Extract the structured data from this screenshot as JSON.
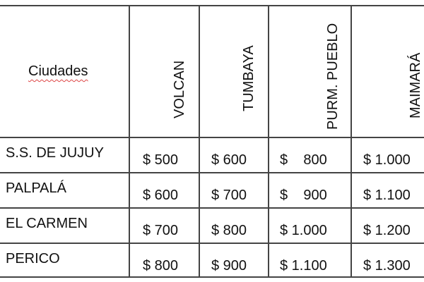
{
  "table": {
    "corner_header": "Ciudades",
    "columns": [
      "VOLCAN",
      "TUMBAYA",
      "PURM. PUEBLO",
      "MAIMARÁ"
    ],
    "rows": [
      {
        "city": "S.S. DE JUJUY",
        "values": [
          "$ 500",
          "$ 600",
          "$    800",
          "$ 1.000"
        ]
      },
      {
        "city": "PALPALÁ",
        "values": [
          "$ 600",
          "$ 700",
          "$    900",
          "$ 1.100"
        ]
      },
      {
        "city": "EL CARMEN",
        "values": [
          "$ 700",
          "$ 800",
          "$ 1.000",
          "$ 1.200"
        ]
      },
      {
        "city": "PERICO",
        "values": [
          "$ 800",
          "$ 900",
          "$ 1.100",
          "$ 1.300"
        ]
      }
    ]
  }
}
